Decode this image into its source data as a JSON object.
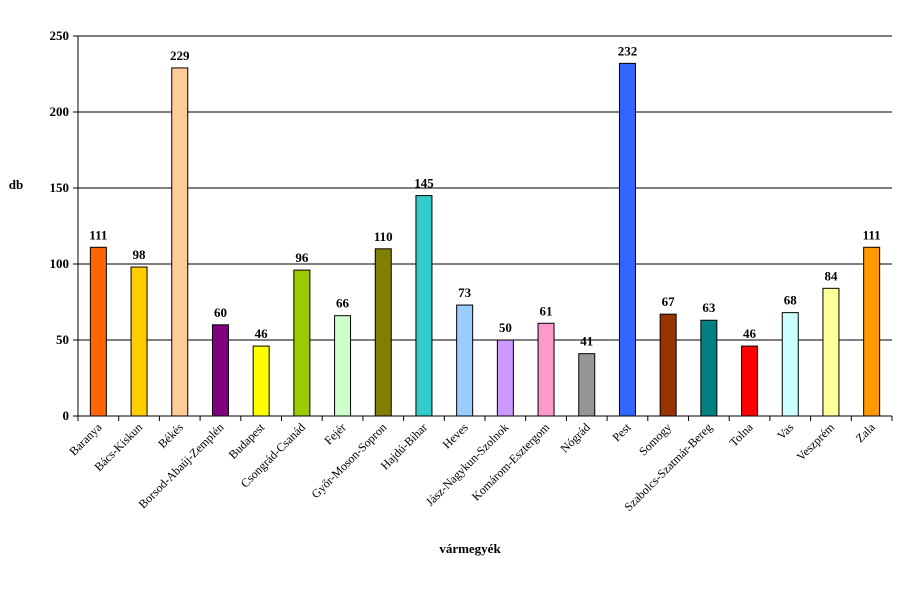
{
  "chart_data": {
    "type": "bar",
    "xlabel": "vármegyék",
    "ylabel": "db",
    "ylim": [
      0,
      250
    ],
    "yticks": [
      0,
      50,
      100,
      150,
      200,
      250
    ],
    "grid": "horizontal",
    "legend": "none",
    "categories": [
      "Baranya",
      "Bács-Kiskun",
      "Békés",
      "Borsod-Abaúj-Zemplén",
      "Budapest",
      "Csongrád-Csanád",
      "Fejér",
      "Győr-Moson-Sopron",
      "Hajdú-Bihar",
      "Heves",
      "Jász-Nagykun-Szolnok",
      "Komárom-Esztergom",
      "Nógrád",
      "Pest",
      "Somogy",
      "Szabolcs-Szatmár-Bereg",
      "Tolna",
      "Vas",
      "Veszprém",
      "Zala"
    ],
    "values": [
      111,
      98,
      229,
      60,
      46,
      96,
      66,
      110,
      145,
      73,
      50,
      61,
      41,
      232,
      67,
      63,
      46,
      68,
      84,
      111
    ],
    "colors": [
      "#ff6600",
      "#ffcc00",
      "#ffcc99",
      "#800080",
      "#ffff00",
      "#99cc00",
      "#ccffcc",
      "#808000",
      "#33cccc",
      "#99ccff",
      "#cc99ff",
      "#ff99cc",
      "#969696",
      "#3366ff",
      "#993300",
      "#008080",
      "#ff0000",
      "#ccffff",
      "#ffff99",
      "#ff9900"
    ]
  }
}
